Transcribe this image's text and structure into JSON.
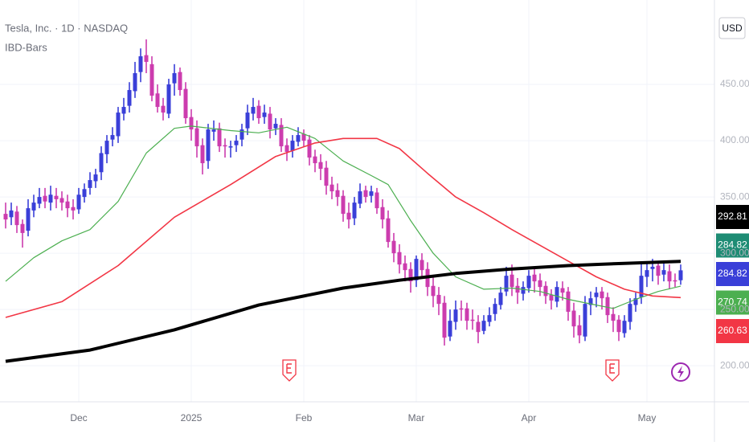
{
  "chart_data": {
    "type": "ohlc",
    "title": "Tesla, Inc. · 1D · NASDAQ",
    "indicator": "IBD-Bars",
    "currency": "USD",
    "up_color": "#3a3fd8",
    "down_color": "#cc3cae",
    "xlim": [
      -1,
      126
    ],
    "xticks": [
      {
        "value": 13,
        "label": "Dec"
      },
      {
        "value": 33,
        "label": "2025"
      },
      {
        "value": 53,
        "label": "Feb"
      },
      {
        "value": 73,
        "label": "Mar"
      },
      {
        "value": 93,
        "label": "Apr"
      },
      {
        "value": 114,
        "label": "May"
      }
    ],
    "ylim": [
      168,
      525
    ],
    "yticks": [
      {
        "value": 200,
        "label": "200.00"
      },
      {
        "value": 250,
        "label": "250.00"
      },
      {
        "value": 300,
        "label": "300.00"
      },
      {
        "value": 350,
        "label": "350.00"
      },
      {
        "value": 400,
        "label": "400.00"
      },
      {
        "value": 450,
        "label": "450.00"
      }
    ],
    "grid": true,
    "open": [
      335,
      332,
      337,
      326,
      320,
      338,
      344,
      351,
      345,
      351,
      349,
      346,
      341,
      339,
      350,
      358,
      364,
      372,
      388,
      401,
      404,
      424,
      431,
      444,
      461,
      476,
      468,
      442,
      431,
      424,
      451,
      461,
      446,
      421,
      411,
      396,
      382,
      408,
      411,
      396,
      394,
      396,
      401,
      411,
      424,
      431,
      421,
      424,
      411,
      414,
      396,
      391,
      399,
      406,
      401,
      386,
      381,
      376,
      361,
      356,
      351,
      336,
      331,
      344,
      356,
      351,
      354,
      341,
      331,
      311,
      301,
      291,
      286,
      276,
      294,
      286,
      271,
      263,
      256,
      226,
      239,
      251,
      251,
      241,
      239,
      231,
      239,
      246,
      254,
      266,
      281,
      271,
      264,
      269,
      281,
      276,
      271,
      263,
      257,
      269,
      266,
      249,
      236,
      226,
      254,
      261,
      266,
      261,
      246,
      241,
      229,
      239,
      254,
      261,
      279,
      286,
      289,
      281,
      284,
      276,
      276
    ],
    "high": [
      345,
      345,
      342,
      330,
      348,
      352,
      358,
      358,
      360,
      358,
      355,
      352,
      348,
      358,
      362,
      372,
      375,
      395,
      405,
      412,
      430,
      438,
      452,
      470,
      482,
      490,
      475,
      450,
      438,
      455,
      468,
      465,
      452,
      428,
      418,
      402,
      415,
      418,
      416,
      402,
      400,
      405,
      415,
      432,
      438,
      436,
      432,
      430,
      420,
      420,
      402,
      405,
      412,
      410,
      405,
      392,
      388,
      382,
      368,
      362,
      356,
      345,
      350,
      362,
      360,
      360,
      358,
      348,
      338,
      318,
      308,
      298,
      292,
      298,
      300,
      292,
      280,
      270,
      262,
      250,
      258,
      258,
      256,
      250,
      245,
      245,
      252,
      260,
      270,
      288,
      290,
      278,
      275,
      285,
      288,
      282,
      275,
      268,
      275,
      275,
      270,
      256,
      245,
      262,
      266,
      270,
      270,
      265,
      252,
      245,
      245,
      260,
      265,
      292,
      292,
      295,
      292,
      292,
      290,
      282,
      290
    ],
    "low": [
      322,
      325,
      318,
      305,
      315,
      332,
      340,
      340,
      338,
      340,
      338,
      332,
      330,
      335,
      345,
      352,
      358,
      365,
      380,
      395,
      398,
      418,
      425,
      438,
      452,
      460,
      435,
      425,
      418,
      420,
      440,
      440,
      415,
      400,
      385,
      370,
      375,
      400,
      390,
      385,
      385,
      390,
      395,
      405,
      418,
      415,
      415,
      402,
      405,
      390,
      382,
      385,
      395,
      395,
      378,
      372,
      365,
      352,
      348,
      342,
      328,
      322,
      325,
      340,
      345,
      345,
      335,
      322,
      305,
      292,
      282,
      275,
      265,
      270,
      278,
      262,
      252,
      245,
      218,
      222,
      232,
      240,
      232,
      232,
      220,
      228,
      235,
      240,
      250,
      262,
      262,
      255,
      258,
      265,
      265,
      262,
      255,
      250,
      252,
      258,
      240,
      225,
      220,
      222,
      245,
      252,
      250,
      238,
      230,
      222,
      225,
      232,
      248,
      255,
      270,
      275,
      272,
      275,
      268,
      270,
      272
    ],
    "close": [
      330,
      338,
      325,
      318,
      340,
      345,
      350,
      346,
      352,
      348,
      345,
      340,
      338,
      352,
      357,
      365,
      370,
      389,
      400,
      405,
      425,
      430,
      445,
      460,
      475,
      470,
      440,
      430,
      425,
      450,
      460,
      445,
      420,
      410,
      395,
      380,
      410,
      410,
      395,
      395,
      395,
      400,
      410,
      425,
      430,
      420,
      425,
      410,
      415,
      395,
      390,
      400,
      405,
      400,
      385,
      380,
      375,
      360,
      355,
      350,
      335,
      330,
      345,
      355,
      350,
      355,
      340,
      330,
      310,
      300,
      290,
      285,
      275,
      295,
      285,
      270,
      262,
      255,
      225,
      240,
      250,
      250,
      240,
      240,
      230,
      240,
      245,
      255,
      265,
      280,
      270,
      265,
      270,
      280,
      275,
      270,
      262,
      258,
      270,
      265,
      248,
      235,
      227,
      255,
      260,
      265,
      260,
      245,
      240,
      230,
      240,
      255,
      260,
      280,
      285,
      288,
      280,
      285,
      275,
      275,
      284.82
    ],
    "series": [
      {
        "color": "#4caf50",
        "width": 1.2,
        "x": [
          0,
          5,
          10,
          15,
          20,
          25,
          30,
          33,
          40,
          45,
          50,
          55,
          60,
          65,
          68,
          72,
          76,
          80,
          85,
          90,
          95,
          100,
          105,
          108,
          112,
          116,
          120
        ],
        "values": [
          275,
          296,
          311,
          321,
          346,
          389,
          411,
          413,
          409,
          407,
          412,
          402,
          382,
          369,
          361,
          329,
          300,
          279,
          268,
          269,
          266,
          259,
          254,
          251,
          259,
          266,
          270.74
        ]
      },
      {
        "color": "#f23645",
        "width": 1.6,
        "x": [
          0,
          10,
          20,
          30,
          40,
          48,
          55,
          60,
          66,
          70,
          75,
          80,
          85,
          90,
          95,
          100,
          105,
          110,
          115,
          120
        ],
        "values": [
          243,
          257,
          289,
          332,
          361,
          386,
          398,
          402,
          402,
          393,
          371,
          350,
          336,
          321,
          307,
          293,
          279,
          268,
          262,
          260.63
        ]
      },
      {
        "color": "#000000",
        "width": 4,
        "x": [
          0,
          15,
          30,
          45,
          60,
          70,
          80,
          90,
          100,
          110,
          120
        ],
        "values": [
          204,
          214,
          232,
          254,
          269,
          276,
          282,
          286,
          289,
          291,
          292.81
        ]
      }
    ],
    "price_labels": [
      {
        "value": 292.81,
        "color": "#000000"
      },
      {
        "value": 284.82,
        "color": "#1e8c74"
      },
      {
        "value": 284.82,
        "color": "#3a3fd8"
      },
      {
        "value": 270.74,
        "color": "#4caf50"
      },
      {
        "value": 260.63,
        "color": "#f23645"
      }
    ]
  }
}
